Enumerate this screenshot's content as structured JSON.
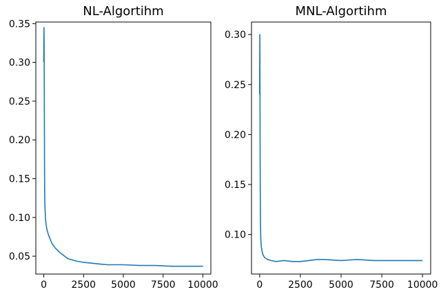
{
  "chart_data": [
    {
      "type": "line",
      "title": "NL-Algortihm",
      "xlabel": "",
      "ylabel": "",
      "xlim": [
        -500,
        10500
      ],
      "ylim": [
        0.027,
        0.352
      ],
      "xticks": [
        0,
        2500,
        5000,
        7500,
        10000
      ],
      "xtick_labels": [
        "0",
        "2500",
        "5000",
        "7500",
        "10000"
      ],
      "yticks": [
        0.05,
        0.1,
        0.15,
        0.2,
        0.25,
        0.3,
        0.35
      ],
      "ytick_labels": [
        "0.05",
        "0.10",
        "0.15",
        "0.20",
        "0.25",
        "0.30",
        "0.35"
      ],
      "grid": false,
      "color": "#1f77b4",
      "series": [
        {
          "x": [
            0,
            10,
            20,
            30,
            40,
            50,
            60,
            80,
            100,
            150,
            200,
            300,
            400,
            500,
            700,
            1000,
            1500,
            2000,
            2500,
            3000,
            3500,
            4000,
            4500,
            5000,
            6000,
            7000,
            8000,
            9000,
            10000
          ],
          "y": [
            0.3,
            0.345,
            0.33,
            0.28,
            0.2,
            0.15,
            0.125,
            0.11,
            0.1,
            0.09,
            0.084,
            0.077,
            0.072,
            0.067,
            0.061,
            0.055,
            0.047,
            0.044,
            0.042,
            0.041,
            0.04,
            0.039,
            0.039,
            0.039,
            0.038,
            0.038,
            0.037,
            0.037,
            0.037
          ]
        }
      ]
    },
    {
      "type": "line",
      "title": "MNL-Algortihm",
      "xlabel": "",
      "ylabel": "",
      "xlim": [
        -500,
        10500
      ],
      "ylim": [
        0.0605,
        0.3125
      ],
      "xticks": [
        0,
        2500,
        5000,
        7500,
        10000
      ],
      "xtick_labels": [
        "0",
        "2500",
        "5000",
        "7500",
        "10000"
      ],
      "yticks": [
        0.1,
        0.15,
        0.2,
        0.25,
        0.3
      ],
      "ytick_labels": [
        "0.10",
        "0.15",
        "0.20",
        "0.25",
        "0.30"
      ],
      "grid": false,
      "color": "#1f77b4",
      "series": [
        {
          "x": [
            0,
            10,
            20,
            30,
            40,
            50,
            70,
            100,
            150,
            200,
            300,
            400,
            500,
            700,
            1000,
            1500,
            2000,
            2500,
            3000,
            3500,
            4000,
            5000,
            6000,
            7000,
            8000,
            9000,
            10000
          ],
          "y": [
            0.24,
            0.3,
            0.25,
            0.18,
            0.13,
            0.11,
            0.095,
            0.088,
            0.083,
            0.08,
            0.077,
            0.076,
            0.075,
            0.074,
            0.073,
            0.074,
            0.073,
            0.073,
            0.074,
            0.075,
            0.075,
            0.074,
            0.075,
            0.074,
            0.074,
            0.074,
            0.074
          ]
        }
      ]
    }
  ]
}
